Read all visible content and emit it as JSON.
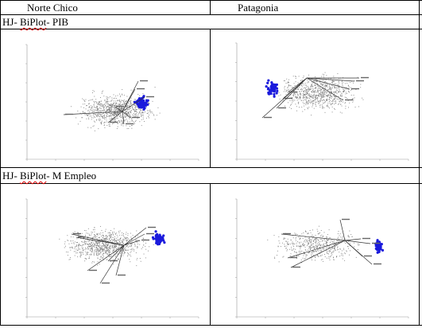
{
  "table": {
    "header": {
      "col1": "Norte Chico",
      "col2": "Patagonia"
    },
    "section1": {
      "label_prefix": "HJ- ",
      "label_squiggle": "BiPlot",
      "label_suffix": "- PIB"
    },
    "section2": {
      "label_prefix": "HJ- ",
      "label_squiggle": "BiPlot",
      "label_suffix": "- M Empleo"
    }
  },
  "colors": {
    "points_gray": "#7a7a7a",
    "points_blue": "#1a1adc",
    "axis": "#9a9a9a",
    "vector": "#333333",
    "spellcheck": "#e00000"
  }
}
